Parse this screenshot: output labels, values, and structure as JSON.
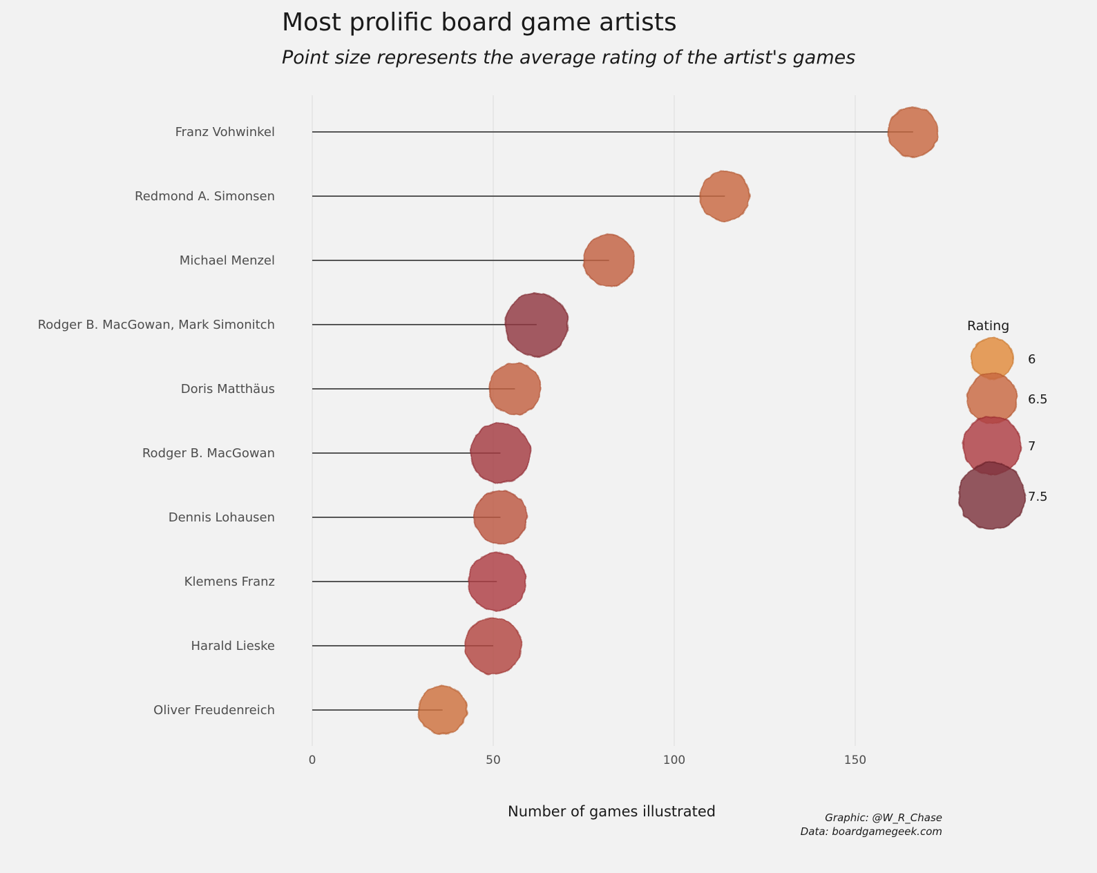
{
  "title": "Most prolific board game artists",
  "subtitle": "Point size represents the average rating of the artist's games",
  "caption": {
    "line1": "Graphic: @W_R_Chase",
    "line2": "Data: boardgamegeek.com"
  },
  "chart_data": {
    "type": "scatter",
    "title": "Most prolific board game artists",
    "subtitle": "Point size represents the average rating of the artist's games",
    "xlabel": "Number of games illustrated",
    "ylabel": "",
    "xlim": [
      0,
      180
    ],
    "x_ticks": [
      0,
      50,
      100,
      150
    ],
    "grid": true,
    "categories": [
      "Franz Vohwinkel",
      "Redmond A. Simonsen",
      "Michael Menzel",
      "Rodger B. MacGowan, Mark Simonitch",
      "Doris Matthäus",
      "Rodger B. MacGowan",
      "Dennis Lohausen",
      "Klemens Franz",
      "Harald Lieske",
      "Oliver Freudenreich"
    ],
    "values": [
      166,
      114,
      82,
      62,
      56,
      52,
      52,
      51,
      50,
      36
    ],
    "ratings": [
      6.5,
      6.5,
      6.6,
      7.3,
      6.6,
      7.1,
      6.7,
      7.0,
      6.9,
      6.4
    ],
    "legend": {
      "title": "Rating",
      "placement": "right",
      "items": [
        {
          "label": "6",
          "value": 6.0
        },
        {
          "label": "6.5",
          "value": 6.5
        },
        {
          "label": "7",
          "value": 7.0
        },
        {
          "label": "7.5",
          "value": 7.5
        }
      ]
    },
    "color_scale": [
      "#e08a3c",
      "#c8693f",
      "#ad3d43",
      "#7e353d"
    ]
  }
}
